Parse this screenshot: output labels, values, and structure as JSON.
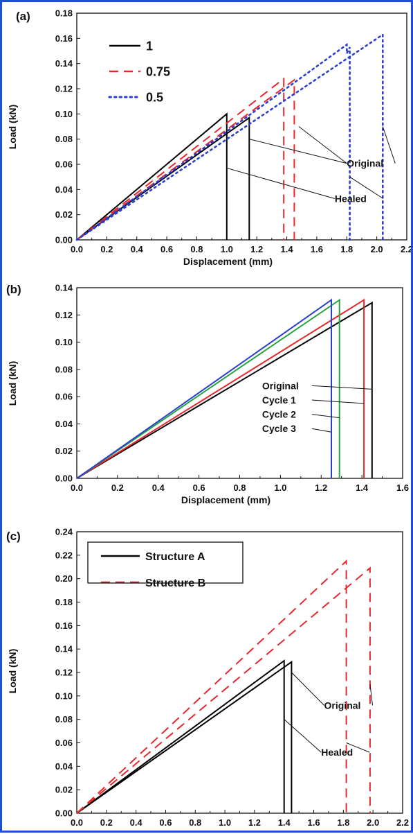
{
  "figure": {
    "border_color": "#1d4fd6"
  },
  "chart_data": [
    {
      "panel_label": "(a)",
      "type": "line",
      "xlabel": "Displacement (mm)",
      "ylabel": "Load (kN)",
      "xlim": [
        0.0,
        2.2
      ],
      "ylim": [
        0.0,
        0.18
      ],
      "xticks": [
        "0.0",
        "0.2",
        "0.4",
        "0.6",
        "0.8",
        "1.0",
        "1.2",
        "1.4",
        "1.6",
        "1.8",
        "2.0",
        "2.2"
      ],
      "yticks": [
        "0.00",
        "0.02",
        "0.04",
        "0.06",
        "0.08",
        "0.10",
        "0.12",
        "0.14",
        "0.16",
        "0.18"
      ],
      "grid": false,
      "legend_position": "top-left",
      "series": [
        {
          "name": "1",
          "color": "#000000",
          "style": "solid",
          "curves": [
            {
              "x": [
                0,
                1.0,
                1.0
              ],
              "y": [
                0,
                0.1,
                0
              ]
            },
            {
              "x": [
                0,
                1.15,
                1.15
              ],
              "y": [
                0,
                0.097,
                0
              ]
            }
          ]
        },
        {
          "name": "0.75",
          "color": "#e8262b",
          "style": "dashed",
          "curves": [
            {
              "x": [
                0,
                1.38,
                1.38
              ],
              "y": [
                0,
                0.128,
                0
              ]
            },
            {
              "x": [
                0,
                1.45,
                1.45
              ],
              "y": [
                0,
                0.127,
                0
              ]
            }
          ]
        },
        {
          "name": "0.5",
          "color": "#2b3fcf",
          "style": "dotted",
          "curves": [
            {
              "x": [
                0,
                1.8,
                1.8,
                1.82,
                1.82
              ],
              "y": [
                0,
                0.155,
                0.148,
                0.153,
                0
              ]
            },
            {
              "x": [
                0,
                2.04,
                2.04
              ],
              "y": [
                0,
                0.163,
                0
              ]
            }
          ]
        }
      ],
      "annotations": [
        {
          "text": "Original",
          "label_at": [
            1.8,
            0.058
          ],
          "targets": [
            [
              1.48,
              0.09
            ],
            [
              2.04,
              0.09
            ],
            [
              1.15,
              0.08
            ]
          ]
        },
        {
          "text": "Healed",
          "label_at": [
            1.72,
            0.03
          ],
          "targets": [
            [
              1.0,
              0.057
            ],
            [
              1.82,
              0.05
            ]
          ]
        }
      ]
    },
    {
      "panel_label": "(b)",
      "type": "line",
      "xlabel": "Displacement (mm)",
      "ylabel": "Load (kN)",
      "xlim": [
        0.0,
        1.6
      ],
      "ylim": [
        0.0,
        0.14
      ],
      "xticks": [
        "0.0",
        "0.2",
        "0.4",
        "0.6",
        "0.8",
        "1.0",
        "1.2",
        "1.4",
        "1.6"
      ],
      "yticks": [
        "0.00",
        "0.02",
        "0.04",
        "0.06",
        "0.08",
        "0.10",
        "0.12",
        "0.14"
      ],
      "grid": false,
      "legend_position": "none",
      "series": [
        {
          "name": "Original",
          "color": "#000000",
          "style": "solid",
          "curves": [
            {
              "x": [
                0,
                1.45,
                1.45
              ],
              "y": [
                0,
                0.129,
                0
              ]
            }
          ]
        },
        {
          "name": "Cycle 1",
          "color": "#e8262b",
          "style": "solid",
          "curves": [
            {
              "x": [
                0,
                1.41,
                1.41
              ],
              "y": [
                0,
                0.131,
                0
              ]
            }
          ]
        },
        {
          "name": "Cycle 2",
          "color": "#22a33c",
          "style": "solid",
          "curves": [
            {
              "x": [
                0,
                1.29,
                1.29
              ],
              "y": [
                0,
                0.131,
                0
              ]
            }
          ]
        },
        {
          "name": "Cycle 3",
          "color": "#2b3fcf",
          "style": "solid",
          "curves": [
            {
              "x": [
                0,
                1.25,
                1.25
              ],
              "y": [
                0,
                0.131,
                0
              ]
            }
          ]
        }
      ],
      "annotations": [
        {
          "text": "Original",
          "label_at": [
            0.91,
            0.0655
          ],
          "targets": [
            [
              1.45,
              0.0655
            ]
          ]
        },
        {
          "text": "Cycle 1",
          "label_at": [
            0.91,
            0.055
          ],
          "targets": [
            [
              1.41,
              0.055
            ]
          ]
        },
        {
          "text": "Cycle 2",
          "label_at": [
            0.91,
            0.0445
          ],
          "targets": [
            [
              1.29,
              0.0445
            ]
          ]
        },
        {
          "text": "Cycle 3",
          "label_at": [
            0.91,
            0.034
          ],
          "targets": [
            [
              1.25,
              0.034
            ]
          ]
        }
      ]
    },
    {
      "panel_label": "(c)",
      "type": "line",
      "xlabel": "Displacement (mm)",
      "ylabel": "Load (kN)",
      "xlim": [
        0.0,
        2.2
      ],
      "ylim": [
        0.0,
        0.24
      ],
      "xticks": [
        "0.0",
        "0.2",
        "0.4",
        "0.6",
        "0.8",
        "1.0",
        "1.2",
        "1.4",
        "1.6",
        "1.8",
        "2.0",
        "2.2"
      ],
      "yticks": [
        "0.00",
        "0.02",
        "0.04",
        "0.06",
        "0.08",
        "0.10",
        "0.12",
        "0.14",
        "0.16",
        "0.18",
        "0.20",
        "0.22",
        "0.24"
      ],
      "grid": false,
      "legend_position": "top-left",
      "series": [
        {
          "name": "Structure A",
          "color": "#000000",
          "style": "solid",
          "curves": [
            {
              "x": [
                0,
                1.4,
                1.4
              ],
              "y": [
                0,
                0.13,
                0
              ]
            },
            {
              "x": [
                0,
                1.45,
                1.45
              ],
              "y": [
                0,
                0.129,
                0
              ]
            }
          ]
        },
        {
          "name": "Structure B",
          "color": "#e8262b",
          "style": "dashed",
          "curves": [
            {
              "x": [
                0,
                1.82,
                1.82
              ],
              "y": [
                0,
                0.215,
                0
              ]
            },
            {
              "x": [
                0,
                1.98,
                1.98
              ],
              "y": [
                0,
                0.209,
                0
              ]
            }
          ]
        }
      ],
      "annotations": [
        {
          "text": "Original",
          "label_at": [
            1.67,
            0.089
          ],
          "targets": [
            [
              1.45,
              0.12
            ],
            [
              1.98,
              0.11
            ]
          ]
        },
        {
          "text": "Healed",
          "label_at": [
            1.65,
            0.049
          ],
          "targets": [
            [
              1.4,
              0.08
            ],
            [
              1.82,
              0.06
            ]
          ]
        }
      ]
    }
  ]
}
